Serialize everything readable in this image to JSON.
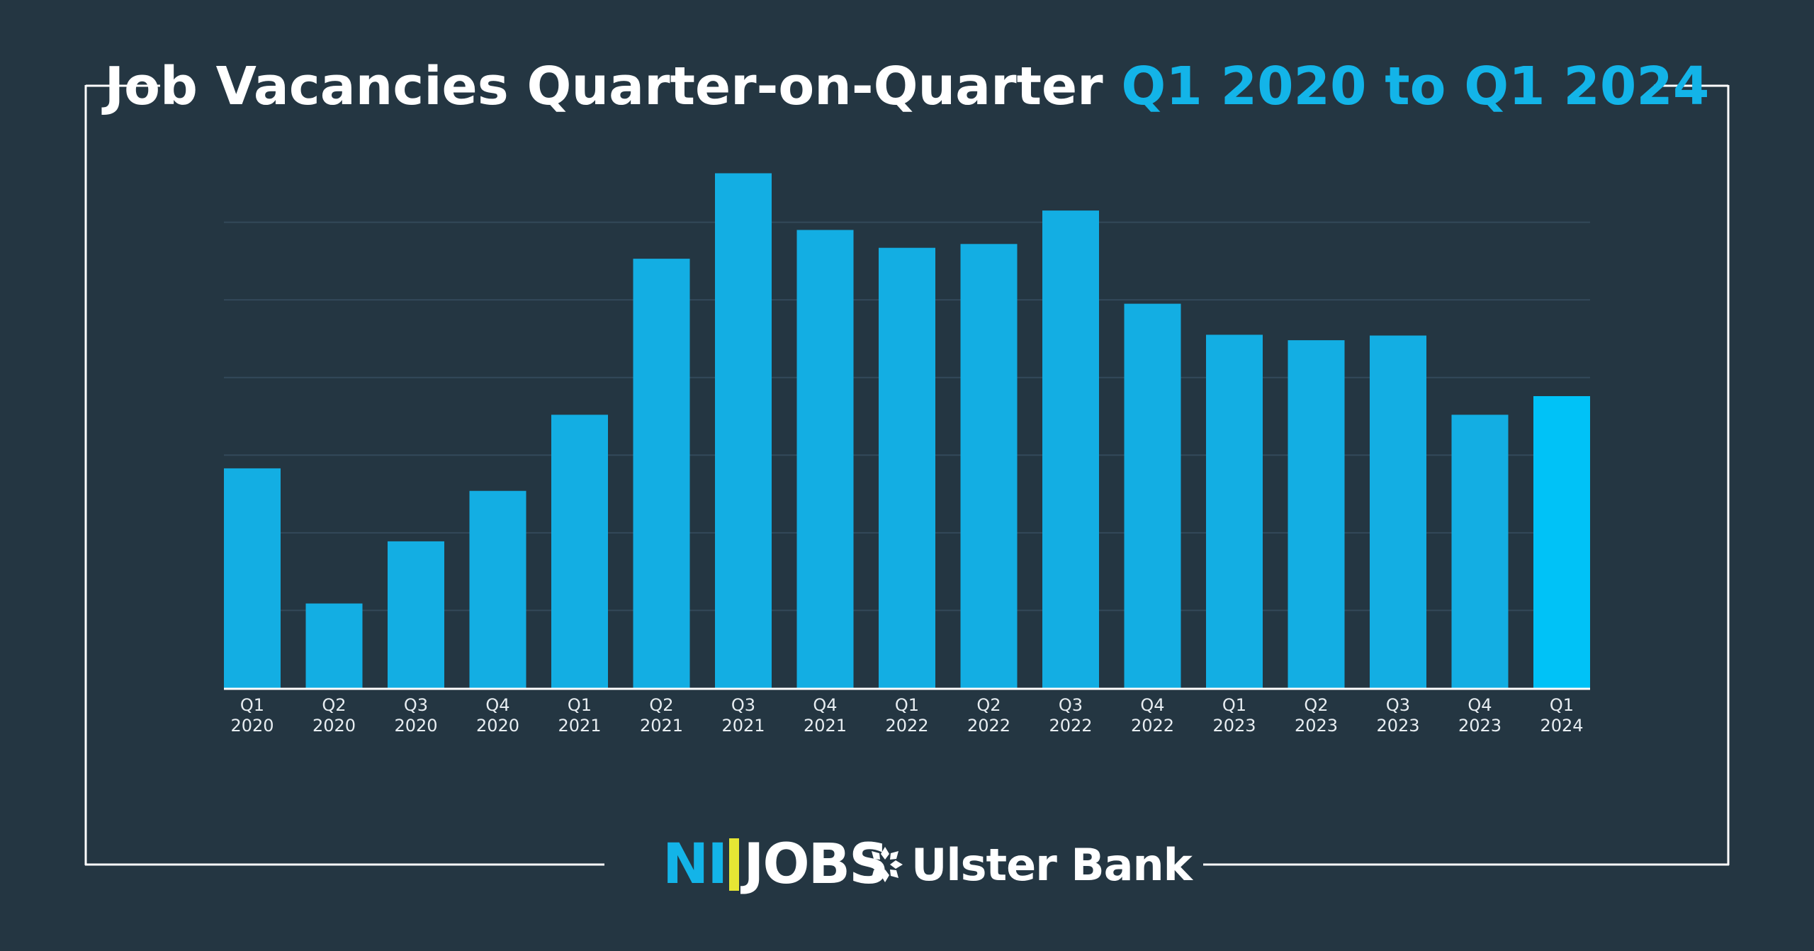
{
  "title": {
    "main": "Job Vacancies Quarter-on-Quarter",
    "accent": "Q1 2020 to Q1 2024"
  },
  "colors": {
    "background": "#243642",
    "bar": "#13aee3",
    "bar_highlight": "#00c2f7",
    "frame": "#ffffff",
    "grid": "#33495a"
  },
  "logos": {
    "nijobs_ni": "NI",
    "nijobs_jobs": "JOBS",
    "ulster_bank": "Ulster Bank",
    "ulster_icon": "ulster-bank-cross-icon"
  },
  "chart_data": {
    "type": "bar",
    "categories": [
      [
        "Q1",
        "2020"
      ],
      [
        "Q2",
        "2020"
      ],
      [
        "Q3",
        "2020"
      ],
      [
        "Q4",
        "2020"
      ],
      [
        "Q1",
        "2021"
      ],
      [
        "Q2",
        "2021"
      ],
      [
        "Q3",
        "2021"
      ],
      [
        "Q4",
        "2021"
      ],
      [
        "Q1",
        "2022"
      ],
      [
        "Q2",
        "2022"
      ],
      [
        "Q3",
        "2022"
      ],
      [
        "Q4",
        "2022"
      ],
      [
        "Q1",
        "2023"
      ],
      [
        "Q2",
        "2023"
      ],
      [
        "Q3",
        "2023"
      ],
      [
        "Q4",
        "2023"
      ],
      [
        "Q1",
        "2024"
      ]
    ],
    "values": [
      2.83,
      1.09,
      1.89,
      2.54,
      3.52,
      5.53,
      6.63,
      5.9,
      5.67,
      5.72,
      6.15,
      4.95,
      4.55,
      4.48,
      4.54,
      3.52,
      3.76
    ],
    "highlight_index": 16,
    "ylim": [
      0,
      7
    ],
    "gridlines": [
      1,
      2,
      3,
      4,
      5,
      6
    ],
    "grid": true,
    "legend": "none",
    "xlabel": "",
    "ylabel": ""
  }
}
